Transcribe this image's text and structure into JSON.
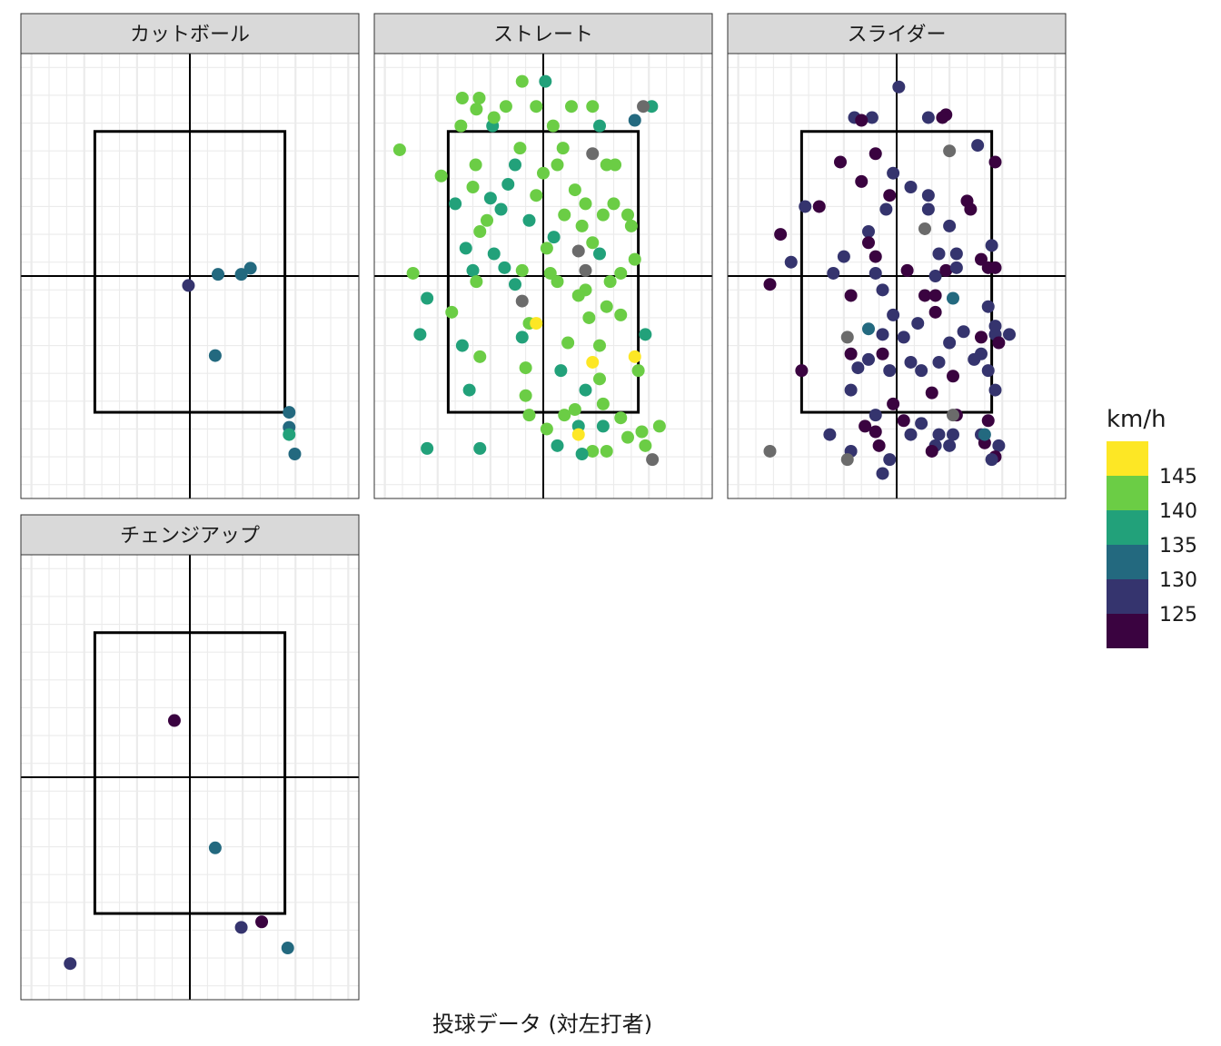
{
  "chart_data": {
    "type": "scatter",
    "caption": "投球データ (対左打者)",
    "x_range": [
      -2.4,
      2.4
    ],
    "y_range": [
      -4.0,
      4.0
    ],
    "strike_zone": {
      "x": [
        -1.35,
        1.35
      ],
      "y": [
        -2.45,
        2.6
      ]
    },
    "legend": {
      "title": "km/h",
      "placement": "right",
      "bins": [
        {
          "label": "145",
          "color": "#FDE725"
        },
        {
          "label": "140",
          "color": "#6BCD45"
        },
        {
          "label": "135",
          "color": "#22A17A"
        },
        {
          "label": "130",
          "color": "#23697F"
        },
        {
          "label": "125",
          "color": "#35346E"
        },
        {
          "label": "",
          "color": "#3A0340"
        }
      ]
    },
    "colors": {
      "c145": "#FDE725",
      "c140": "#6BCD45",
      "c135": "#22A17A",
      "c130": "#23697F",
      "c125": "#35346E",
      "c120": "#3A0340",
      "na": "#6B6B6B"
    },
    "panels": [
      {
        "title": "カットボール",
        "points": [
          [
            -0.02,
            -0.17,
            "c125"
          ],
          [
            0.4,
            0.03,
            "c130"
          ],
          [
            0.73,
            0.03,
            "c130"
          ],
          [
            0.86,
            0.14,
            "c130"
          ],
          [
            0.36,
            -1.43,
            "c130"
          ],
          [
            1.41,
            -2.45,
            "c130"
          ],
          [
            1.41,
            -2.72,
            "c130"
          ],
          [
            1.41,
            -2.85,
            "c135"
          ],
          [
            1.49,
            -3.2,
            "c130"
          ]
        ]
      },
      {
        "title": "ストレート",
        "points": [
          [
            -2.04,
            2.27,
            "c140"
          ],
          [
            -1.15,
            3.2,
            "c140"
          ],
          [
            -0.91,
            3.2,
            "c140"
          ],
          [
            -0.3,
            3.5,
            "c140"
          ],
          [
            0.03,
            3.5,
            "c135"
          ],
          [
            -0.53,
            3.05,
            "c140"
          ],
          [
            -0.1,
            3.05,
            "c140"
          ],
          [
            0.4,
            3.05,
            "c140"
          ],
          [
            0.7,
            3.05,
            "c140"
          ],
          [
            1.54,
            3.05,
            "c135"
          ],
          [
            -1.17,
            2.7,
            "c140"
          ],
          [
            -0.72,
            2.7,
            "c135"
          ],
          [
            0.14,
            2.7,
            "c140"
          ],
          [
            0.8,
            2.7,
            "c135"
          ],
          [
            1.3,
            2.8,
            "c130"
          ],
          [
            -0.33,
            2.3,
            "c140"
          ],
          [
            0.28,
            2.3,
            "c140"
          ],
          [
            0.7,
            2.2,
            "na"
          ],
          [
            -0.96,
            2.0,
            "c140"
          ],
          [
            -0.4,
            2.0,
            "c135"
          ],
          [
            0.2,
            2.0,
            "c140"
          ],
          [
            0.9,
            2.0,
            "c140"
          ],
          [
            1.02,
            2.0,
            "c140"
          ],
          [
            -1.45,
            1.8,
            "c140"
          ],
          [
            -1.0,
            1.6,
            "c140"
          ],
          [
            -0.5,
            1.65,
            "c135"
          ],
          [
            0.0,
            1.85,
            "c140"
          ],
          [
            0.45,
            1.55,
            "c140"
          ],
          [
            -0.75,
            1.4,
            "c135"
          ],
          [
            -0.1,
            1.45,
            "c140"
          ],
          [
            0.6,
            1.3,
            "c140"
          ],
          [
            1.0,
            1.3,
            "c140"
          ],
          [
            -1.25,
            1.3,
            "c135"
          ],
          [
            -0.6,
            1.2,
            "c135"
          ],
          [
            0.3,
            1.1,
            "c140"
          ],
          [
            0.85,
            1.1,
            "c140"
          ],
          [
            1.2,
            1.1,
            "c140"
          ],
          [
            -0.8,
            1.0,
            "c140"
          ],
          [
            -0.2,
            1.0,
            "c135"
          ],
          [
            0.55,
            0.9,
            "c140"
          ],
          [
            1.25,
            0.9,
            "c140"
          ],
          [
            -0.9,
            0.8,
            "c140"
          ],
          [
            0.15,
            0.7,
            "c135"
          ],
          [
            0.7,
            0.6,
            "c140"
          ],
          [
            -1.1,
            0.5,
            "c135"
          ],
          [
            -0.7,
            0.4,
            "c135"
          ],
          [
            0.05,
            0.5,
            "c140"
          ],
          [
            0.5,
            0.45,
            "na"
          ],
          [
            0.8,
            0.4,
            "c135"
          ],
          [
            1.3,
            0.3,
            "c140"
          ],
          [
            -0.3,
            0.1,
            "c140"
          ],
          [
            0.1,
            0.05,
            "c140"
          ],
          [
            0.6,
            0.1,
            "na"
          ],
          [
            1.1,
            0.05,
            "c140"
          ],
          [
            -1.85,
            0.05,
            "c140"
          ],
          [
            -1.0,
            0.1,
            "c135"
          ],
          [
            -0.55,
            0.15,
            "c135"
          ],
          [
            -1.65,
            -0.4,
            "c135"
          ],
          [
            -0.95,
            -0.1,
            "c140"
          ],
          [
            -0.4,
            -0.15,
            "c135"
          ],
          [
            0.2,
            -0.1,
            "c140"
          ],
          [
            0.6,
            -0.25,
            "c140"
          ],
          [
            0.95,
            -0.1,
            "c140"
          ],
          [
            -0.3,
            -0.45,
            "na"
          ],
          [
            0.5,
            -0.35,
            "c140"
          ],
          [
            0.9,
            -0.55,
            "c140"
          ],
          [
            -1.3,
            -0.65,
            "c140"
          ],
          [
            -0.2,
            -0.85,
            "c140"
          ],
          [
            -0.1,
            -0.85,
            "c145"
          ],
          [
            0.65,
            -0.75,
            "c140"
          ],
          [
            1.1,
            -0.7,
            "c140"
          ],
          [
            -1.75,
            -1.05,
            "c135"
          ],
          [
            -0.3,
            -1.1,
            "c135"
          ],
          [
            0.35,
            -1.2,
            "c140"
          ],
          [
            0.8,
            -1.25,
            "c140"
          ],
          [
            1.45,
            -1.05,
            "c135"
          ],
          [
            1.3,
            -1.45,
            "c145"
          ],
          [
            -0.9,
            -1.45,
            "c140"
          ],
          [
            -1.15,
            -1.25,
            "c135"
          ],
          [
            0.7,
            -1.55,
            "c145"
          ],
          [
            -0.25,
            -1.65,
            "c140"
          ],
          [
            0.25,
            -1.7,
            "c135"
          ],
          [
            0.8,
            -1.85,
            "c140"
          ],
          [
            1.35,
            -1.7,
            "c140"
          ],
          [
            -1.05,
            -2.05,
            "c135"
          ],
          [
            0.6,
            -2.05,
            "c135"
          ],
          [
            -0.25,
            -2.15,
            "c140"
          ],
          [
            0.45,
            -2.4,
            "c140"
          ],
          [
            0.85,
            -2.3,
            "c140"
          ],
          [
            -0.2,
            -2.5,
            "c140"
          ],
          [
            0.3,
            -2.5,
            "c140"
          ],
          [
            1.1,
            -2.55,
            "c140"
          ],
          [
            0.5,
            -2.7,
            "c135"
          ],
          [
            0.85,
            -2.7,
            "c135"
          ],
          [
            0.05,
            -2.75,
            "c140"
          ],
          [
            0.5,
            -2.85,
            "c145"
          ],
          [
            1.4,
            -2.8,
            "c140"
          ],
          [
            1.65,
            -2.7,
            "c140"
          ],
          [
            -1.65,
            -3.1,
            "c135"
          ],
          [
            -0.9,
            -3.1,
            "c135"
          ],
          [
            0.2,
            -3.05,
            "c135"
          ],
          [
            0.7,
            -3.15,
            "c140"
          ],
          [
            0.9,
            -3.15,
            "c140"
          ],
          [
            1.2,
            -2.9,
            "c140"
          ],
          [
            1.45,
            -3.05,
            "c140"
          ],
          [
            1.55,
            -3.3,
            "na"
          ],
          [
            1.42,
            3.05,
            "na"
          ],
          [
            0.55,
            -3.2,
            "c135"
          ],
          [
            -0.7,
            2.85,
            "c140"
          ],
          [
            -0.95,
            3.0,
            "c140"
          ]
        ]
      },
      {
        "title": "スライダー",
        "points": [
          [
            0.03,
            3.4,
            "c125"
          ],
          [
            -0.6,
            2.85,
            "c125"
          ],
          [
            -0.35,
            2.85,
            "c125"
          ],
          [
            0.45,
            2.85,
            "c125"
          ],
          [
            0.7,
            2.9,
            "c120"
          ],
          [
            -0.5,
            2.8,
            "c120"
          ],
          [
            1.15,
            2.35,
            "c125"
          ],
          [
            0.75,
            2.25,
            "na"
          ],
          [
            -0.3,
            2.2,
            "c120"
          ],
          [
            -0.8,
            2.05,
            "c120"
          ],
          [
            -0.05,
            1.85,
            "c125"
          ],
          [
            1.4,
            2.05,
            "c120"
          ],
          [
            -0.5,
            1.7,
            "c120"
          ],
          [
            0.2,
            1.6,
            "c125"
          ],
          [
            0.45,
            1.45,
            "c125"
          ],
          [
            1.0,
            1.35,
            "c120"
          ],
          [
            -1.1,
            1.25,
            "c120"
          ],
          [
            -1.3,
            1.25,
            "c125"
          ],
          [
            -0.15,
            1.2,
            "c125"
          ],
          [
            0.45,
            1.2,
            "c125"
          ],
          [
            1.05,
            1.2,
            "c120"
          ],
          [
            -1.65,
            0.75,
            "c120"
          ],
          [
            -0.4,
            0.8,
            "c125"
          ],
          [
            0.4,
            0.85,
            "na"
          ],
          [
            0.75,
            0.9,
            "c125"
          ],
          [
            1.35,
            0.55,
            "c125"
          ],
          [
            -0.75,
            0.35,
            "c125"
          ],
          [
            -0.3,
            0.35,
            "c120"
          ],
          [
            0.6,
            0.4,
            "c125"
          ],
          [
            0.85,
            0.4,
            "c125"
          ],
          [
            1.2,
            0.3,
            "c120"
          ],
          [
            -1.5,
            0.25,
            "c125"
          ],
          [
            -0.9,
            0.05,
            "c125"
          ],
          [
            -0.3,
            0.05,
            "c125"
          ],
          [
            0.15,
            0.1,
            "c120"
          ],
          [
            0.55,
            0.0,
            "c125"
          ],
          [
            0.7,
            0.1,
            "c120"
          ],
          [
            0.85,
            0.15,
            "c125"
          ],
          [
            1.3,
            0.15,
            "c120"
          ],
          [
            1.4,
            0.15,
            "c120"
          ],
          [
            -1.8,
            -0.15,
            "c120"
          ],
          [
            -0.65,
            -0.35,
            "c120"
          ],
          [
            -0.2,
            -0.25,
            "c125"
          ],
          [
            0.4,
            -0.35,
            "c120"
          ],
          [
            0.55,
            -0.35,
            "c120"
          ],
          [
            0.8,
            -0.4,
            "c130"
          ],
          [
            1.3,
            -0.55,
            "c125"
          ],
          [
            -0.05,
            -0.7,
            "c125"
          ],
          [
            0.55,
            -0.65,
            "c120"
          ],
          [
            0.3,
            -0.85,
            "c125"
          ],
          [
            -0.4,
            -0.95,
            "c130"
          ],
          [
            -0.7,
            -1.1,
            "na"
          ],
          [
            0.95,
            -1.0,
            "c125"
          ],
          [
            1.4,
            -1.05,
            "c125"
          ],
          [
            1.2,
            -1.1,
            "c120"
          ],
          [
            -0.2,
            -1.05,
            "c125"
          ],
          [
            0.1,
            -1.1,
            "c125"
          ],
          [
            0.75,
            -1.2,
            "c125"
          ],
          [
            1.45,
            -1.2,
            "c120"
          ],
          [
            -1.35,
            -1.7,
            "c120"
          ],
          [
            -0.65,
            -1.4,
            "c120"
          ],
          [
            -0.4,
            -1.5,
            "c125"
          ],
          [
            -0.2,
            -1.4,
            "c120"
          ],
          [
            0.2,
            -1.55,
            "c125"
          ],
          [
            0.6,
            -1.55,
            "c125"
          ],
          [
            1.2,
            -1.4,
            "c125"
          ],
          [
            -0.55,
            -1.65,
            "c125"
          ],
          [
            -0.1,
            -1.7,
            "c125"
          ],
          [
            0.35,
            -1.7,
            "c125"
          ],
          [
            0.8,
            -1.8,
            "c120"
          ],
          [
            1.3,
            -1.7,
            "c125"
          ],
          [
            -0.65,
            -2.05,
            "c125"
          ],
          [
            -0.05,
            -2.3,
            "c120"
          ],
          [
            0.5,
            -2.1,
            "c120"
          ],
          [
            1.4,
            -2.05,
            "c125"
          ],
          [
            -0.3,
            -2.5,
            "c125"
          ],
          [
            0.1,
            -2.6,
            "c120"
          ],
          [
            0.35,
            -2.65,
            "c125"
          ],
          [
            0.85,
            -2.5,
            "c120"
          ],
          [
            1.3,
            -2.6,
            "c120"
          ],
          [
            -0.95,
            -2.85,
            "c125"
          ],
          [
            -0.3,
            -2.8,
            "c120"
          ],
          [
            0.2,
            -2.85,
            "c125"
          ],
          [
            0.6,
            -2.85,
            "c125"
          ],
          [
            0.8,
            -2.85,
            "c125"
          ],
          [
            1.2,
            -2.85,
            "c125"
          ],
          [
            -0.25,
            -3.05,
            "c120"
          ],
          [
            0.55,
            -3.05,
            "c125"
          ],
          [
            0.75,
            -3.05,
            "c125"
          ],
          [
            1.25,
            -3.0,
            "c120"
          ],
          [
            1.45,
            -3.05,
            "c125"
          ],
          [
            -1.8,
            -3.15,
            "na"
          ],
          [
            -0.65,
            -3.15,
            "c125"
          ],
          [
            0.5,
            -3.15,
            "c120"
          ],
          [
            1.4,
            -3.25,
            "c120"
          ],
          [
            -0.7,
            -3.3,
            "na"
          ],
          [
            -0.1,
            -3.3,
            "c125"
          ],
          [
            1.35,
            -3.3,
            "c125"
          ],
          [
            -0.2,
            -3.55,
            "c125"
          ],
          [
            0.8,
            -2.5,
            "na"
          ],
          [
            1.25,
            -2.85,
            "c130"
          ],
          [
            -0.4,
            0.6,
            "c120"
          ],
          [
            0.65,
            2.85,
            "c120"
          ],
          [
            -0.45,
            -2.7,
            "c120"
          ],
          [
            1.1,
            -1.5,
            "c125"
          ],
          [
            1.6,
            -1.05,
            "c125"
          ],
          [
            -0.1,
            1.45,
            "c120"
          ],
          [
            1.4,
            -0.9,
            "c125"
          ]
        ]
      },
      {
        "title": "チェンジアップ",
        "points": [
          [
            -0.22,
            1.02,
            "c120"
          ],
          [
            0.36,
            -1.27,
            "c130"
          ],
          [
            0.73,
            -2.7,
            "c125"
          ],
          [
            1.02,
            -2.6,
            "c120"
          ],
          [
            1.39,
            -3.07,
            "c130"
          ],
          [
            -1.7,
            -3.35,
            "c125"
          ]
        ]
      }
    ]
  }
}
